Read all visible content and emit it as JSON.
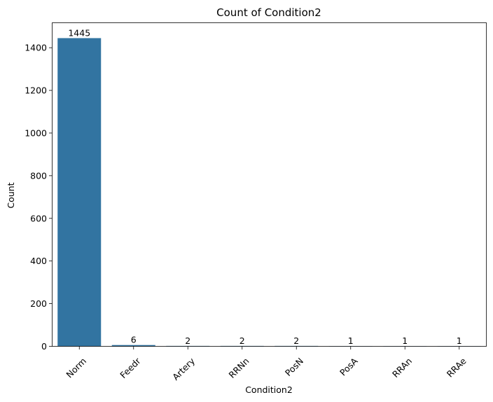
{
  "chart_data": {
    "type": "bar",
    "title": "Count of Condition2",
    "xlabel": "Condition2",
    "ylabel": "Count",
    "categories": [
      "Norm",
      "Feedr",
      "Artery",
      "RRNn",
      "PosN",
      "PosA",
      "RRAn",
      "RRAe"
    ],
    "values": [
      1445,
      6,
      2,
      2,
      2,
      1,
      1,
      1
    ],
    "data_labels": [
      "1445",
      "6",
      "2",
      "2",
      "2",
      "1",
      "1",
      "1"
    ],
    "yticks": [
      0,
      200,
      400,
      600,
      800,
      1000,
      1200,
      1400
    ],
    "ylim": [
      0,
      1517
    ],
    "grid": false,
    "x_tick_rotation": -45,
    "bar_color": "#3274a1"
  }
}
